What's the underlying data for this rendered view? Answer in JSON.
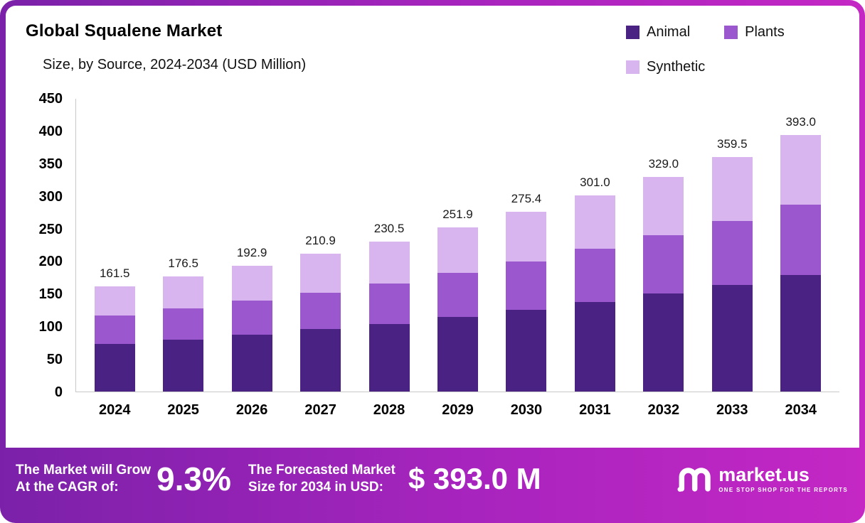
{
  "header": {
    "title": "Global Squalene Market",
    "subtitle": "Size, by Source, 2024-2034 (USD Million)"
  },
  "legend": [
    {
      "label": "Animal",
      "color": "#4a2284"
    },
    {
      "label": "Plants",
      "color": "#9a57ce"
    },
    {
      "label": "Synthetic",
      "color": "#d9b5f0"
    }
  ],
  "chart_data": {
    "type": "bar",
    "stacked": true,
    "title": "Global Squalene Market Size, by Source, 2024-2034 (USD Million)",
    "categories": [
      "2024",
      "2025",
      "2026",
      "2027",
      "2028",
      "2029",
      "2030",
      "2031",
      "2032",
      "2033",
      "2034"
    ],
    "series": [
      {
        "name": "Animal",
        "color": "#4a2284",
        "values": [
          73,
          80,
          87,
          96,
          104,
          114,
          125,
          137,
          150,
          163,
          179
        ]
      },
      {
        "name": "Plants",
        "color": "#9a57ce",
        "values": [
          44,
          48,
          52.5,
          56,
          62,
          68,
          75,
          82,
          90,
          99,
          108
        ]
      },
      {
        "name": "Synthetic",
        "color": "#d9b5f0",
        "values": [
          44.5,
          48.5,
          53.4,
          58.9,
          64.5,
          69.9,
          75.4,
          82,
          89,
          97.5,
          106
        ]
      }
    ],
    "totals": [
      161.5,
      176.5,
      192.9,
      210.9,
      230.5,
      251.9,
      275.4,
      301.0,
      329.0,
      359.5,
      393.0
    ],
    "total_labels": [
      "161.5",
      "176.5",
      "192.9",
      "210.9",
      "230.5",
      "251.9",
      "275.4",
      "301.0",
      "329.0",
      "359.5",
      "393.0"
    ],
    "xlabel": "",
    "ylabel": "",
    "ylim": [
      0,
      450
    ],
    "ytick_step": 50,
    "grid": false,
    "legend_position": "top-right"
  },
  "footer": {
    "cagr_label_line1": "The Market will Grow",
    "cagr_label_line2": "At the CAGR of:",
    "cagr_value": "9.3%",
    "forecast_label_line1": "The Forecasted Market",
    "forecast_label_line2": "Size for 2034 in USD:",
    "forecast_value": "$ 393.0 M",
    "brand": "market.us",
    "brand_tagline": "ONE STOP SHOP FOR THE REPORTS"
  },
  "colors": {
    "frame_gradient_start": "#7b21a9",
    "frame_gradient_end": "#c427c4",
    "card_background": "#ffffff",
    "axis_line": "#c9c9c9",
    "text": "#000000"
  }
}
